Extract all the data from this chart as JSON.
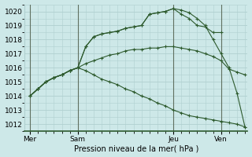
{
  "background_color": "#cde8e8",
  "grid_color": "#b0d0d0",
  "line_color": "#2d5a2d",
  "marker_color": "#2d5a2d",
  "xlabel": "Pression niveau de la mer( hPa )",
  "ylim": [
    1011.5,
    1020.5
  ],
  "yticks": [
    1012,
    1013,
    1014,
    1015,
    1016,
    1017,
    1018,
    1019,
    1020
  ],
  "xtick_labels": [
    "Mer",
    "Sam",
    "Jeu",
    "Ven"
  ],
  "xtick_positions": [
    0,
    18,
    54,
    72
  ],
  "vline_positions": [
    0,
    18,
    54,
    72
  ],
  "xlim": [
    -2,
    82
  ],
  "series": [
    {
      "x": [
        0,
        3,
        6,
        9,
        12,
        15,
        18,
        21,
        24,
        27,
        30,
        33,
        36,
        39,
        42,
        45,
        48,
        51,
        54,
        57,
        60,
        63,
        66,
        69,
        72
      ],
      "y": [
        1014.0,
        1014.5,
        1015.0,
        1015.3,
        1015.5,
        1015.8,
        1016.0,
        1017.5,
        1018.2,
        1018.4,
        1018.5,
        1018.6,
        1018.8,
        1018.9,
        1019.0,
        1019.8,
        1019.9,
        1020.0,
        1020.2,
        1019.8,
        1019.5,
        1019.0,
        1018.9,
        1018.5,
        1018.5
      ]
    },
    {
      "x": [
        0,
        3,
        6,
        9,
        12,
        15,
        18,
        21,
        24,
        27,
        30,
        33,
        36,
        39,
        42,
        45,
        48,
        51,
        54,
        57,
        60,
        63,
        66,
        69,
        72,
        75,
        78,
        81
      ],
      "y": [
        1014.0,
        1014.5,
        1015.0,
        1015.3,
        1015.5,
        1015.8,
        1016.0,
        1017.5,
        1018.2,
        1018.4,
        1018.5,
        1018.6,
        1018.8,
        1018.9,
        1019.0,
        1019.8,
        1019.9,
        1020.0,
        1020.2,
        1020.1,
        1019.9,
        1019.5,
        1019.0,
        1018.0,
        1017.0,
        1016.0,
        1014.2,
        1011.8
      ]
    },
    {
      "x": [
        0,
        3,
        6,
        9,
        12,
        15,
        18,
        21,
        24,
        27,
        30,
        33,
        36,
        39,
        42,
        45,
        48,
        51,
        54,
        57,
        60,
        63,
        66,
        69,
        72,
        75,
        78,
        81
      ],
      "y": [
        1014.0,
        1014.5,
        1015.0,
        1015.3,
        1015.5,
        1015.8,
        1016.0,
        1016.3,
        1016.5,
        1016.7,
        1016.9,
        1017.0,
        1017.2,
        1017.3,
        1017.3,
        1017.4,
        1017.4,
        1017.5,
        1017.5,
        1017.4,
        1017.3,
        1017.2,
        1017.0,
        1016.8,
        1016.5,
        1015.9,
        1015.7,
        1015.5
      ]
    },
    {
      "x": [
        0,
        3,
        6,
        9,
        12,
        15,
        18,
        21,
        24,
        27,
        30,
        33,
        36,
        39,
        42,
        45,
        48,
        51,
        54,
        57,
        60,
        63,
        66,
        69,
        72,
        75,
        78,
        81
      ],
      "y": [
        1014.0,
        1014.5,
        1015.0,
        1015.3,
        1015.5,
        1015.8,
        1016.0,
        1015.8,
        1015.5,
        1015.2,
        1015.0,
        1014.8,
        1014.5,
        1014.3,
        1014.0,
        1013.8,
        1013.5,
        1013.3,
        1013.0,
        1012.8,
        1012.6,
        1012.5,
        1012.4,
        1012.3,
        1012.2,
        1012.1,
        1012.0,
        1011.8
      ]
    }
  ]
}
